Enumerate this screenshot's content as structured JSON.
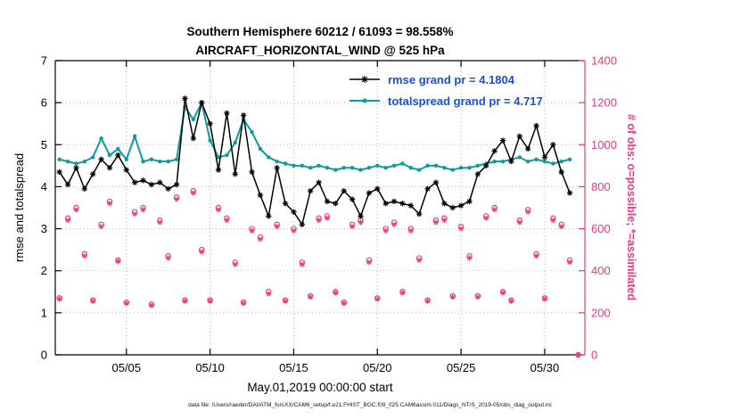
{
  "title": {
    "line1": "Southern Hemisphere 60212 / 61093 = 98.558%",
    "line2": "AIRCRAFT_HORIZONTAL_WIND @ 525 hPa"
  },
  "legend": [
    {
      "label": "rmse grand pr = 4.1804",
      "series": "rmse"
    },
    {
      "label": "totalspread grand pr = 4.717",
      "series": "totalspread"
    }
  ],
  "axes": {
    "left": {
      "label": "rmse and totalspread",
      "ticks": [
        0,
        1,
        2,
        3,
        4,
        5,
        6,
        7
      ]
    },
    "right": {
      "label": "# of obs: o=possible; *=assimilated",
      "ticks": [
        0,
        200,
        400,
        600,
        800,
        1000,
        1200,
        1400
      ]
    },
    "x": {
      "label": "May.01,2019 00:00:00 start",
      "ticks": [
        {
          "label": "05/05",
          "t": 4
        },
        {
          "label": "05/10",
          "t": 9
        },
        {
          "label": "05/15",
          "t": 14
        },
        {
          "label": "05/20",
          "t": 19
        },
        {
          "label": "05/25",
          "t": 24
        },
        {
          "label": "05/30",
          "t": 29
        }
      ]
    }
  },
  "footer": {
    "data_file": "data file: /Users/raeder/DAI/ATM_forcXX/CAM6_setup/f.e21.FHIST_BGC.f09_025.CAM6assim.011/Diags_NTrS_2019-05/obs_diag_output.nc"
  },
  "colors": {
    "rmse": "#000000",
    "totalspread": "#0F9B9B",
    "obs_pink": "#EC3A7C",
    "legend_text": "#1D4ED8",
    "grid": "#B5B5B5",
    "axis": "#000000"
  },
  "chart_data": {
    "type": "line",
    "title": "Southern Hemisphere 60212 / 61093 = 98.558%",
    "subtitle": "AIRCRAFT_HORIZONTAL_WIND @ 525 hPa",
    "xlabel": "May.01,2019 00:00:00 start",
    "ylabel_left": "rmse and totalspread",
    "ylabel_right": "# of obs: o=possible; *=assimilated",
    "x_unit": "days since May.01,2019 00:00:00",
    "xlim": [
      -0.25,
      31.4
    ],
    "ylim_left": [
      0,
      7
    ],
    "ylim_right": [
      0,
      1400
    ],
    "grid": "dotted",
    "legend_position": "top-right-inside",
    "t": [
      0,
      0.5,
      1,
      1.5,
      2,
      2.5,
      3,
      3.5,
      4,
      4.5,
      5,
      5.5,
      6,
      6.5,
      7,
      7.5,
      8,
      8.5,
      9,
      9.5,
      10,
      10.5,
      11,
      11.5,
      12,
      12.5,
      13,
      13.5,
      14,
      14.5,
      15,
      15.5,
      16,
      16.5,
      17,
      17.5,
      18,
      18.5,
      19,
      19.5,
      20,
      20.5,
      21,
      21.5,
      22,
      22.5,
      23,
      23.5,
      24,
      24.5,
      25,
      25.5,
      26,
      26.5,
      27,
      27.5,
      28,
      28.5,
      29,
      29.5,
      30,
      30.5
    ],
    "series": [
      {
        "name": "rmse",
        "axis": "left",
        "grand_mean": 4.1804,
        "marker": "asterisk",
        "values": [
          4.35,
          4.05,
          4.45,
          3.95,
          4.3,
          4.65,
          4.45,
          4.75,
          4.4,
          4.1,
          4.15,
          4.05,
          4.1,
          3.95,
          4.05,
          6.1,
          5.15,
          6.0,
          5.5,
          4.4,
          5.75,
          4.3,
          5.7,
          4.35,
          3.8,
          3.3,
          4.45,
          3.6,
          3.4,
          3.1,
          3.9,
          4.1,
          3.65,
          3.6,
          3.9,
          3.7,
          3.3,
          3.85,
          3.95,
          3.6,
          3.65,
          3.6,
          3.55,
          3.35,
          3.95,
          4.1,
          3.6,
          3.5,
          3.55,
          3.65,
          4.3,
          4.5,
          4.85,
          5.1,
          4.6,
          5.2,
          4.9,
          5.45,
          4.7,
          5.0,
          4.35,
          3.85
        ]
      },
      {
        "name": "totalspread",
        "axis": "left",
        "grand_mean": 4.717,
        "marker": "point",
        "values": [
          4.65,
          4.6,
          4.55,
          4.6,
          4.7,
          5.15,
          4.75,
          4.9,
          4.65,
          5.2,
          4.6,
          4.65,
          4.6,
          4.6,
          4.65,
          5.9,
          5.6,
          6.0,
          5.1,
          4.7,
          4.75,
          5.05,
          5.6,
          5.3,
          4.9,
          4.7,
          4.6,
          4.55,
          4.5,
          4.5,
          4.45,
          4.5,
          4.45,
          4.4,
          4.45,
          4.45,
          4.4,
          4.45,
          4.5,
          4.45,
          4.5,
          4.55,
          4.45,
          4.4,
          4.5,
          4.5,
          4.45,
          4.4,
          4.45,
          4.45,
          4.5,
          4.55,
          4.6,
          4.6,
          4.65,
          4.7,
          4.6,
          4.65,
          4.6,
          4.55,
          4.6,
          4.65
        ]
      }
    ],
    "obs": {
      "axis": "right",
      "t": [
        0,
        0.5,
        1,
        1.5,
        2,
        2.5,
        3,
        3.5,
        4,
        4.5,
        5,
        5.5,
        6,
        6.5,
        7,
        7.5,
        8,
        8.5,
        9,
        9.5,
        10,
        10.5,
        11,
        11.5,
        12,
        12.5,
        13,
        13.5,
        14,
        14.5,
        15,
        15.5,
        16,
        16.5,
        17,
        17.5,
        18,
        18.5,
        19,
        19.5,
        20,
        20.5,
        21,
        21.5,
        22,
        22.5,
        23,
        23.5,
        24,
        24.5,
        25,
        25.5,
        26,
        26.5,
        27,
        27.5,
        28,
        28.5,
        29,
        29.5,
        30,
        30.5,
        31
      ],
      "possible": [
        270,
        650,
        700,
        480,
        260,
        620,
        730,
        450,
        250,
        680,
        700,
        240,
        640,
        470,
        750,
        260,
        780,
        500,
        260,
        700,
        650,
        440,
        250,
        600,
        560,
        300,
        620,
        260,
        600,
        440,
        280,
        650,
        660,
        300,
        250,
        620,
        640,
        450,
        270,
        600,
        630,
        300,
        600,
        460,
        260,
        640,
        650,
        280,
        610,
        470,
        280,
        660,
        700,
        300,
        260,
        640,
        690,
        480,
        270,
        650,
        620,
        450,
        0
      ],
      "assimilated": [
        265,
        640,
        690,
        470,
        255,
        610,
        720,
        445,
        245,
        670,
        690,
        235,
        630,
        460,
        740,
        255,
        770,
        490,
        255,
        690,
        640,
        430,
        245,
        590,
        550,
        290,
        610,
        255,
        590,
        430,
        275,
        640,
        650,
        295,
        245,
        610,
        630,
        440,
        265,
        590,
        620,
        295,
        590,
        450,
        255,
        630,
        640,
        275,
        600,
        460,
        275,
        650,
        690,
        295,
        255,
        630,
        680,
        470,
        265,
        640,
        610,
        440,
        0
      ]
    }
  }
}
